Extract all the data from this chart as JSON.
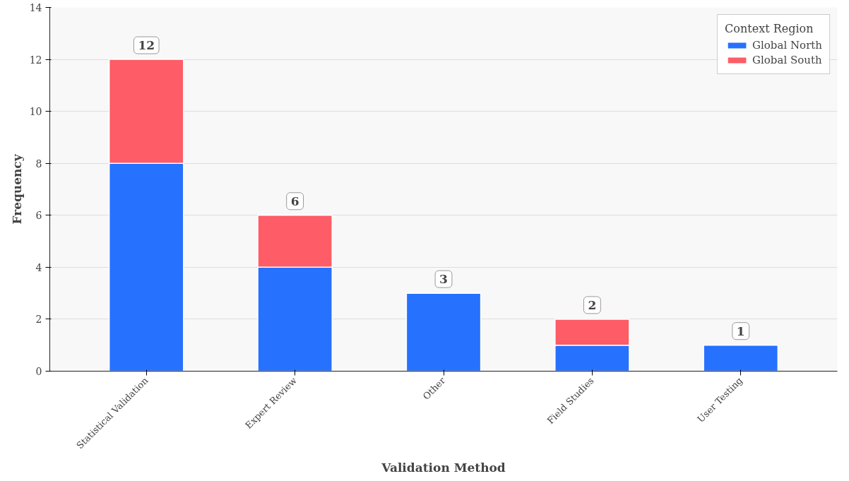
{
  "chart_data": {
    "type": "bar",
    "xlabel": "Validation Method",
    "ylabel": "Frequency",
    "legend_title": "Context Region",
    "categories": [
      "Statistical Validation",
      "Expert Review",
      "Other",
      "Field Studies",
      "User Testing"
    ],
    "series": [
      {
        "name": "Global North",
        "color": "#2671fe",
        "values": [
          8,
          4,
          3,
          1,
          1
        ]
      },
      {
        "name": "Global South",
        "color": "#fe5c67",
        "values": [
          4,
          2,
          0,
          1,
          0
        ]
      }
    ],
    "stacked": true,
    "totals": [
      "12",
      "6",
      "3",
      "2",
      "1"
    ],
    "ylim": [
      0,
      14
    ],
    "yticks": [
      0,
      2,
      4,
      6,
      8,
      10,
      12,
      14
    ],
    "grid": "y",
    "legend": "top right"
  }
}
